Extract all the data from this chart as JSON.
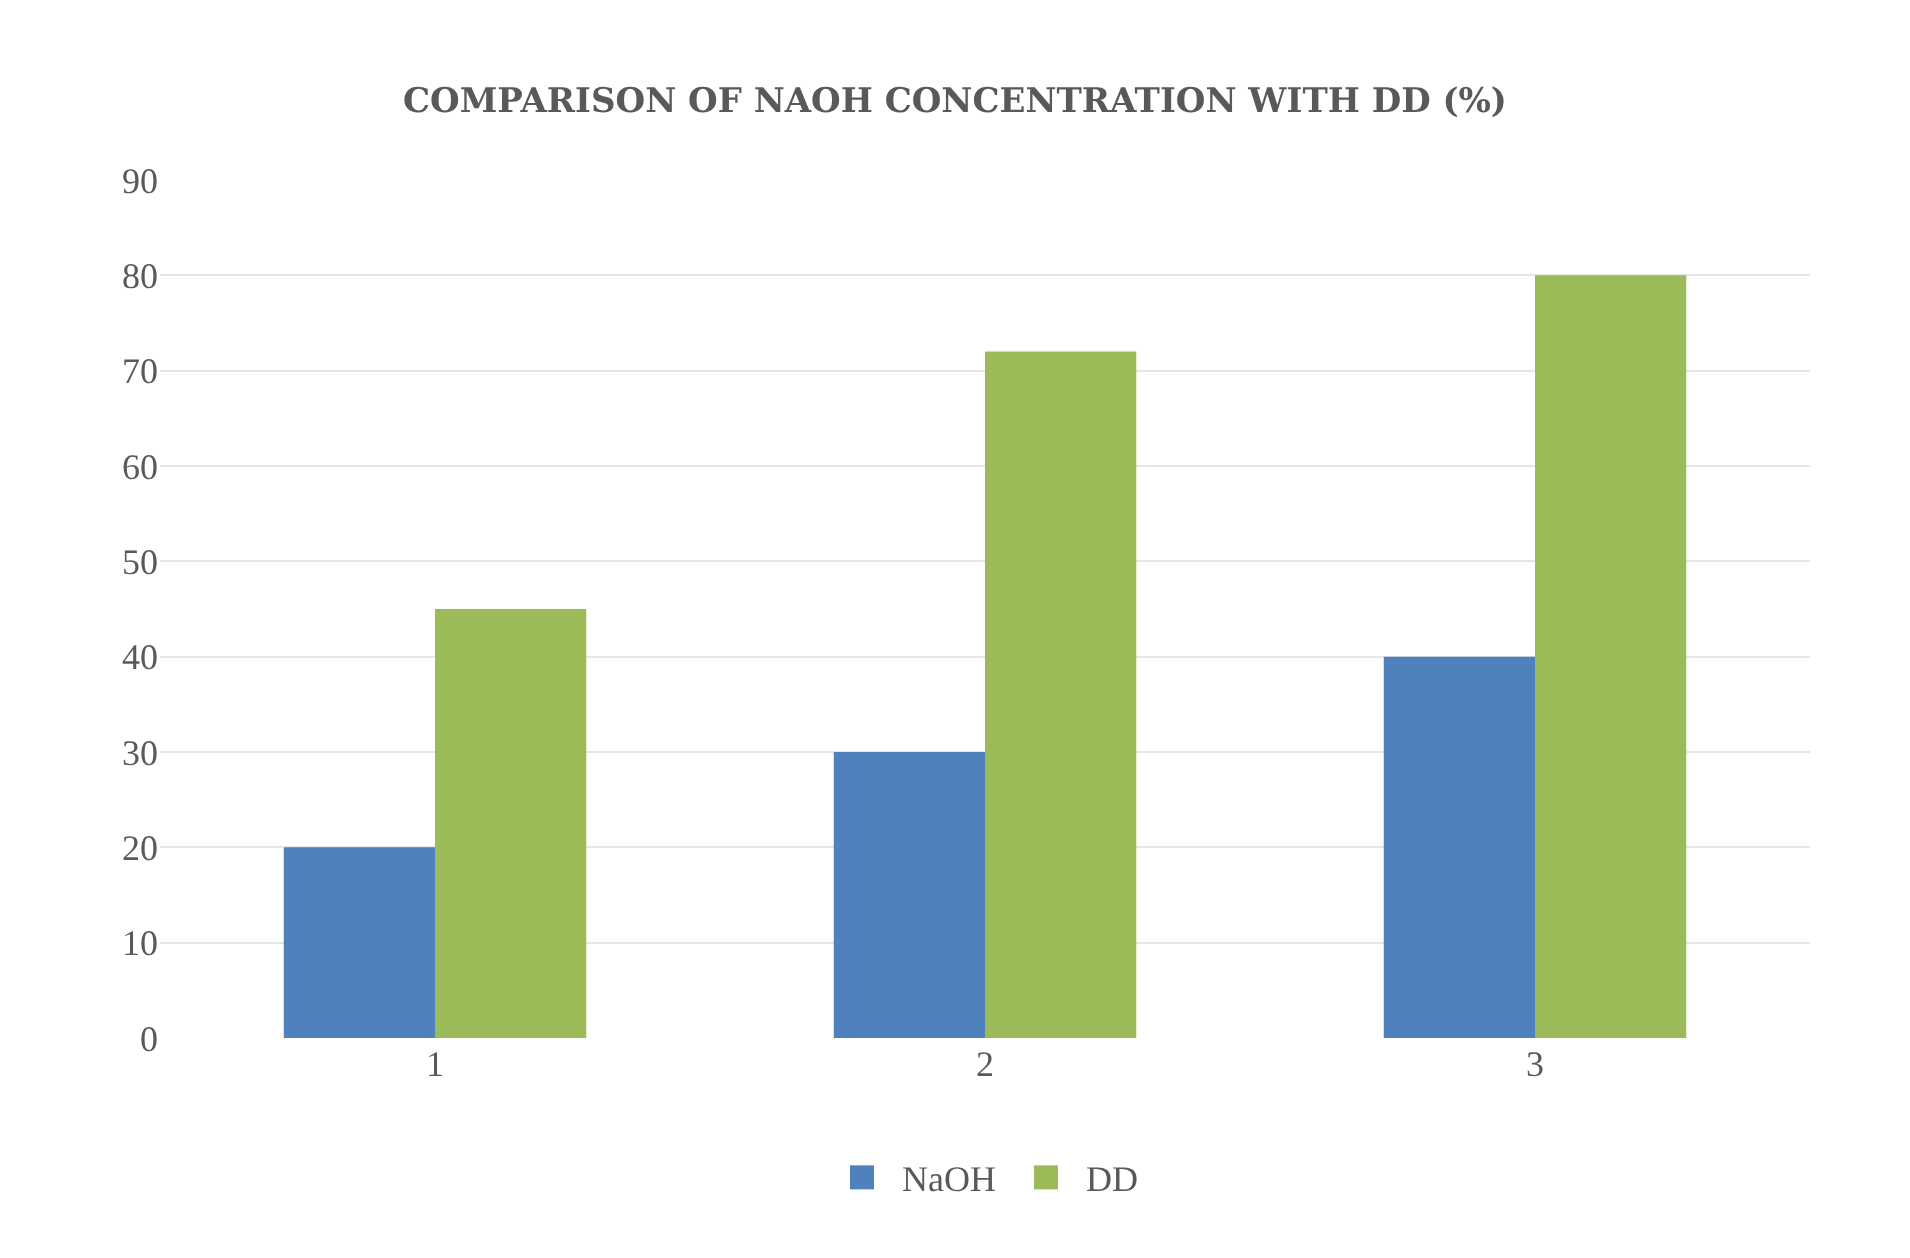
{
  "chart_data": {
    "type": "bar",
    "title": "COMPARISON OF NAOH CONCENTRATION WITH DD (%)",
    "categories": [
      "1",
      "2",
      "3"
    ],
    "series": [
      {
        "name": "NaOH",
        "color": "#4f81bd",
        "values": [
          20,
          30,
          40
        ]
      },
      {
        "name": "DD",
        "color": "#9bbb59",
        "values": [
          45,
          72,
          80
        ]
      }
    ],
    "ylim": [
      0,
      90
    ],
    "yticks": [
      0,
      10,
      20,
      30,
      40,
      50,
      60,
      70,
      80,
      90
    ],
    "grid": "y",
    "legend": "bottom"
  }
}
